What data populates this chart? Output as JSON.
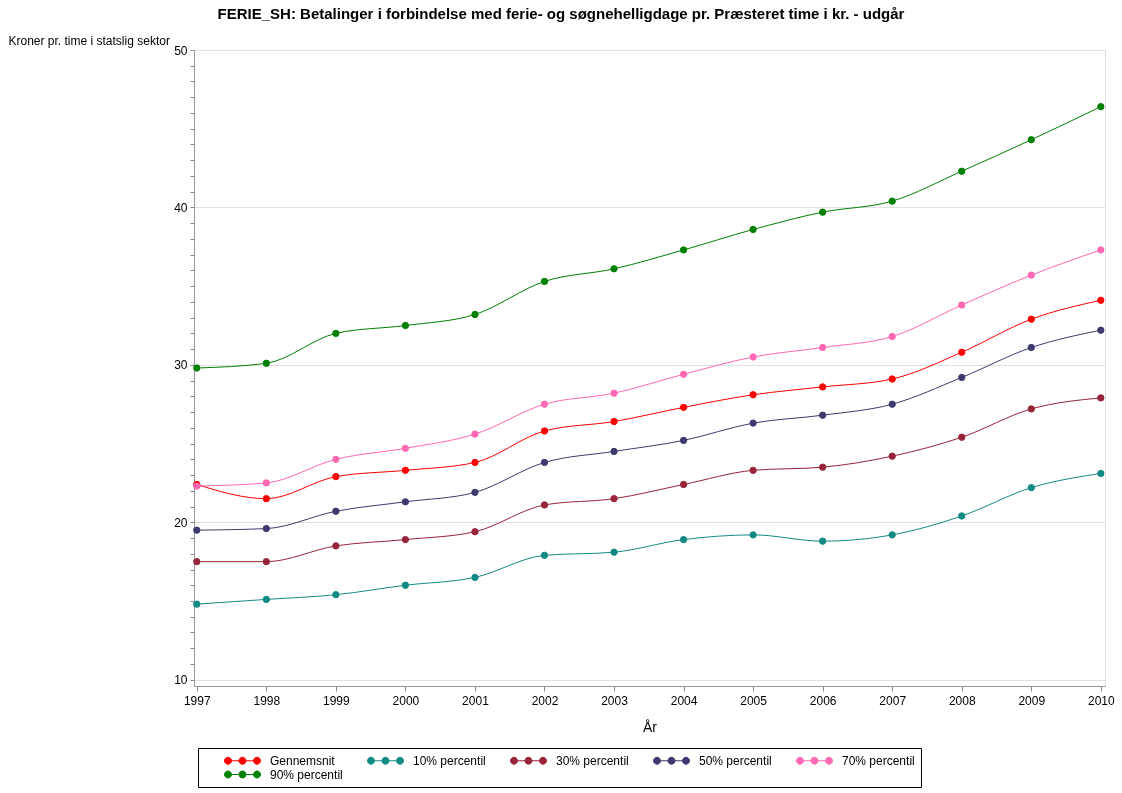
{
  "chart_data": {
    "type": "line",
    "title": "FERIE_SH: Betalinger i forbindelse med ferie- og søgnehelligdage pr. Præsteret time i kr. - udgår",
    "xlabel": "År",
    "ylabel": "Kroner pr. time i statslig sektor",
    "x": [
      1997,
      1998,
      1999,
      2000,
      2001,
      2002,
      2003,
      2004,
      2005,
      2006,
      2007,
      2008,
      2009,
      2010
    ],
    "xlim": [
      1996.96,
      2010.06
    ],
    "xticks": [
      1997,
      1998,
      1999,
      2000,
      2001,
      2002,
      2003,
      2004,
      2005,
      2006,
      2007,
      2008,
      2009,
      2010
    ],
    "ylim": [
      9.6,
      50
    ],
    "yticks": [
      10,
      {
        "value": 11,
        "label": null
      },
      {
        "value": 12,
        "label": null
      },
      {
        "value": 13,
        "label": null
      },
      {
        "value": 14,
        "label": null
      },
      {
        "value": 15,
        "label": null
      },
      {
        "value": 16,
        "label": null
      },
      {
        "value": 17,
        "label": null
      },
      {
        "value": 18,
        "label": null
      },
      {
        "value": 19,
        "label": null
      },
      20,
      {
        "value": 21,
        "label": null
      },
      {
        "value": 22,
        "label": null
      },
      {
        "value": 23,
        "label": null
      },
      {
        "value": 24,
        "label": null
      },
      {
        "value": 25,
        "label": null
      },
      {
        "value": 26,
        "label": null
      },
      {
        "value": 27,
        "label": null
      },
      {
        "value": 28,
        "label": null
      },
      {
        "value": 29,
        "label": null
      },
      30,
      {
        "value": 31,
        "label": null
      },
      {
        "value": 32,
        "label": null
      },
      {
        "value": 33,
        "label": null
      },
      {
        "value": 34,
        "label": null
      },
      {
        "value": 35,
        "label": null
      },
      {
        "value": 36,
        "label": null
      },
      {
        "value": 37,
        "label": null
      },
      {
        "value": 38,
        "label": null
      },
      {
        "value": 39,
        "label": null
      },
      40,
      {
        "value": 41,
        "label": null
      },
      {
        "value": 42,
        "label": null
      },
      {
        "value": 43,
        "label": null
      },
      {
        "value": 44,
        "label": null
      },
      {
        "value": 45,
        "label": null
      },
      {
        "value": 46,
        "label": null
      },
      {
        "value": 47,
        "label": null
      },
      {
        "value": 48,
        "label": null
      },
      {
        "value": 49,
        "label": null
      },
      50
    ],
    "grid": "y",
    "legend": "bottom",
    "marker": "circle",
    "line_style": "solid",
    "series": [
      {
        "name": "Gennemsnit",
        "color": "#ff0000",
        "values": [
          22.4,
          21.5,
          22.9,
          23.3,
          23.8,
          25.8,
          26.4,
          27.3,
          28.1,
          28.6,
          29.1,
          30.8,
          32.9,
          34.1
        ]
      },
      {
        "name": "10% percentil",
        "color": "#128a84",
        "values": [
          14.8,
          15.1,
          15.4,
          16.0,
          16.5,
          17.9,
          18.1,
          18.9,
          19.2,
          18.8,
          19.2,
          20.4,
          22.2,
          23.1
        ]
      },
      {
        "name": "30% percentil",
        "color": "#98243a",
        "values": [
          17.5,
          17.5,
          18.5,
          18.9,
          19.4,
          21.1,
          21.5,
          22.4,
          23.3,
          23.5,
          24.2,
          25.4,
          27.2,
          27.9
        ]
      },
      {
        "name": "50% percentil",
        "color": "#3c3a6e",
        "values": [
          19.5,
          19.6,
          20.7,
          21.3,
          21.9,
          23.8,
          24.5,
          25.2,
          26.3,
          26.8,
          27.5,
          29.2,
          31.1,
          32.2
        ]
      },
      {
        "name": "70% percentil",
        "color": "#ff69b4",
        "values": [
          22.3,
          22.5,
          24.0,
          24.7,
          25.6,
          27.5,
          28.2,
          29.4,
          30.5,
          31.1,
          31.8,
          33.8,
          35.7,
          37.3
        ]
      },
      {
        "name": "90% percentil",
        "color": "#008000",
        "values": [
          29.8,
          30.1,
          32.0,
          32.5,
          33.2,
          35.3,
          36.1,
          37.3,
          38.6,
          39.7,
          40.4,
          42.3,
          44.3,
          46.4
        ]
      }
    ]
  }
}
